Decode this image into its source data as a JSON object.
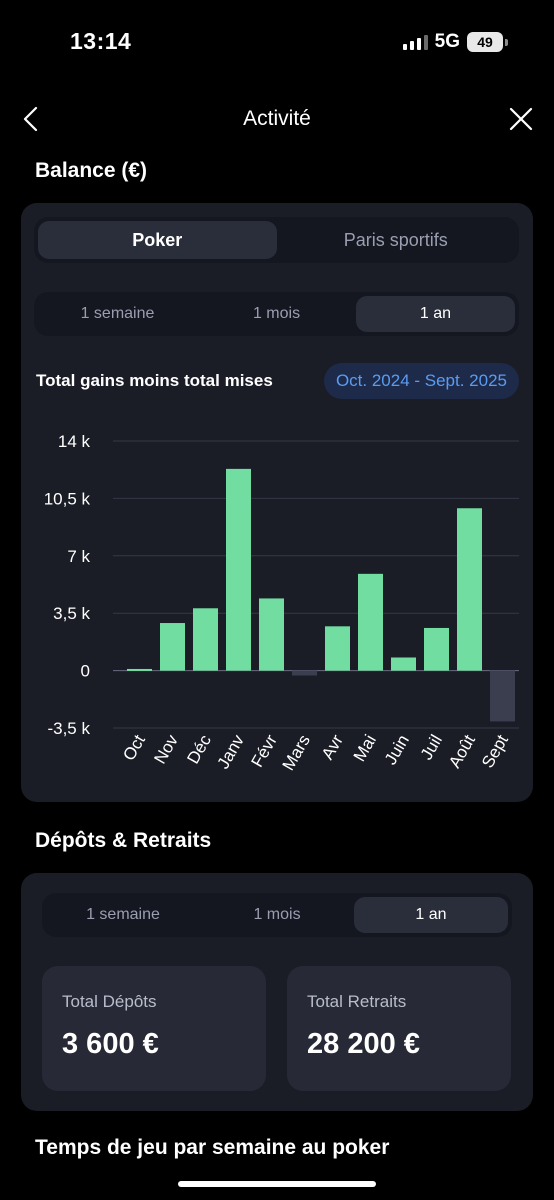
{
  "status": {
    "time": "13:14",
    "network": "5G",
    "battery": "49"
  },
  "nav": {
    "title": "Activité",
    "back_icon": "chevron-left-icon",
    "close_icon": "close-icon"
  },
  "balance": {
    "title": "Balance (€)",
    "game_tabs": [
      {
        "label": "Poker",
        "active": true
      },
      {
        "label": "Paris sportifs",
        "active": false
      }
    ],
    "period_tabs": [
      {
        "label": "1 semaine",
        "active": false
      },
      {
        "label": "1 mois",
        "active": false
      },
      {
        "label": "1 an",
        "active": true
      }
    ],
    "chart_title": "Total gains moins total mises",
    "period_range": "Oct. 2024 - Sept. 2025"
  },
  "chart_data": {
    "type": "bar",
    "title": "Total gains moins total mises",
    "categories": [
      "Oct",
      "Nov",
      "Déc",
      "Janv",
      "Févr",
      "Mars",
      "Avr",
      "Mai",
      "Juin",
      "Juil",
      "Août",
      "Sept"
    ],
    "values": [
      0.1,
      2.9,
      3.8,
      12.3,
      4.4,
      -0.3,
      2.7,
      5.9,
      0.8,
      2.6,
      9.9,
      -3.1
    ],
    "units": "k",
    "y_ticks": [
      "14 k",
      "10,5 k",
      "7 k",
      "3,5 k",
      "0",
      "-3,5 k"
    ],
    "y_tick_values": [
      14,
      10.5,
      7,
      3.5,
      0,
      -3.5
    ],
    "ylim": [
      -3.5,
      14
    ],
    "grid": true,
    "colors": {
      "positive": "#72dda0",
      "negative": "#3a3e4e",
      "grid": "#343846",
      "zero_line": "#686d7e"
    }
  },
  "deposits": {
    "title": "Dépôts & Retraits",
    "period_tabs": [
      {
        "label": "1 semaine",
        "active": false
      },
      {
        "label": "1 mois",
        "active": false
      },
      {
        "label": "1 an",
        "active": true
      }
    ],
    "total_deposits_label": "Total Dépôts",
    "total_deposits_value": "3 600 €",
    "total_withdrawals_label": "Total Retraits",
    "total_withdrawals_value": "28 200 €"
  },
  "next_section_title": "Temps de jeu par semaine au poker"
}
